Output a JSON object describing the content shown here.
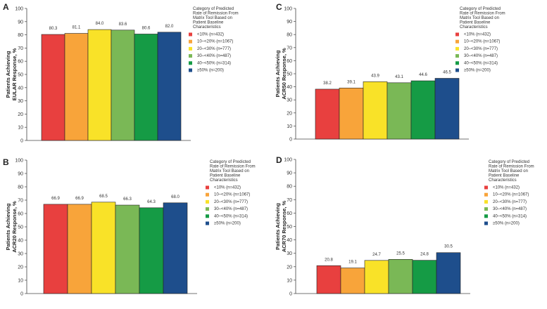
{
  "legend_title_lines": [
    "Category of Predicted",
    "Rate of Remission From",
    "Matrix Tool Based on",
    "Patient Baseline",
    "Characteristics"
  ],
  "categories": [
    "<10% (n=432)",
    "10–<20% (n=1067)",
    "20–<30% (n=777)",
    "30–<40% (n=487)",
    "40–<50% (n=314)",
    "≥50% (n=200)"
  ],
  "colors": [
    "#e8403f",
    "#f8a43a",
    "#f9e228",
    "#7ab856",
    "#159b45",
    "#1e4e8c"
  ],
  "chart_data": [
    {
      "type": "bar",
      "panel": "A",
      "ylabel_lines": [
        "Patients Achieving",
        "EULAR Response, %"
      ],
      "ylim": [
        0,
        100
      ],
      "yticks": [
        0,
        10,
        20,
        30,
        40,
        50,
        60,
        70,
        80,
        90,
        100
      ],
      "categories": [
        "<10% (n=432)",
        "10–<20% (n=1067)",
        "20–<30% (n=777)",
        "30–<40% (n=487)",
        "40–<50% (n=314)",
        "≥50% (n=200)"
      ],
      "values": [
        80.3,
        81.1,
        84.0,
        83.6,
        80.6,
        82.0
      ],
      "value_labels": [
        "80.3",
        "81.1",
        "84.0",
        "83.6",
        "80.6",
        "82.0"
      ]
    },
    {
      "type": "bar",
      "panel": "B",
      "ylabel_lines": [
        "Patients Achieving",
        "ACR20 Response, %"
      ],
      "ylim": [
        0,
        100
      ],
      "yticks": [
        0,
        10,
        20,
        30,
        40,
        50,
        60,
        70,
        80,
        90,
        100
      ],
      "categories": [
        "<10% (n=432)",
        "10–<20% (n=1067)",
        "20–<30% (n=777)",
        "30–<40% (n=487)",
        "40–<50% (n=314)",
        "≥50% (n=200)"
      ],
      "values": [
        66.9,
        66.9,
        68.5,
        66.3,
        64.3,
        68.0
      ],
      "value_labels": [
        "66.9",
        "66.9",
        "68.5",
        "66.3",
        "64.3",
        "68.0"
      ]
    },
    {
      "type": "bar",
      "panel": "C",
      "ylabel_lines": [
        "Patients Achieving",
        "ACR50 Response, %"
      ],
      "ylim": [
        0,
        100
      ],
      "yticks": [
        0,
        10,
        20,
        30,
        40,
        50,
        60,
        70,
        80,
        90,
        100
      ],
      "categories": [
        "<10% (n=432)",
        "10–<20% (n=1067)",
        "20–<30% (n=777)",
        "30–<40% (n=487)",
        "40–<50% (n=314)",
        "≥50% (n=200)"
      ],
      "values": [
        38.2,
        39.1,
        43.9,
        43.1,
        44.6,
        46.5
      ],
      "value_labels": [
        "38.2",
        "39.1",
        "43.9",
        "43.1",
        "44.6",
        "46.5"
      ]
    },
    {
      "type": "bar",
      "panel": "D",
      "ylabel_lines": [
        "Patients Achieving",
        "ACR70 Response, %"
      ],
      "ylim": [
        0,
        100
      ],
      "yticks": [
        0,
        10,
        20,
        30,
        40,
        50,
        60,
        70,
        80,
        90,
        100
      ],
      "categories": [
        "<10% (n=432)",
        "10–<20% (n=1067)",
        "20–<30% (n=777)",
        "30–<40% (n=487)",
        "40–<50% (n=314)",
        "≥50% (n=200)"
      ],
      "values": [
        20.8,
        19.1,
        24.7,
        25.5,
        24.8,
        30.5
      ],
      "value_labels": [
        "20.8",
        "19.1",
        "24.7",
        "25.5",
        "24.8",
        "30.5"
      ]
    }
  ]
}
